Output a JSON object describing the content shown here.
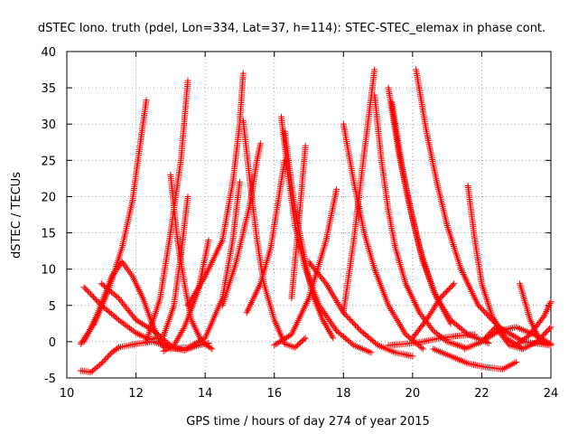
{
  "chart_data": {
    "type": "scatter",
    "title": "dSTEC Iono. truth (pdel, Lon=334, Lat=37, h=114): STEC-STEC_elemax in phase cont.",
    "xlabel": "GPS time / hours of day 274 of year 2015",
    "ylabel": "dSTEC  / TECUs",
    "xlim": [
      10,
      24
    ],
    "ylim": [
      -5,
      40
    ],
    "xticks": [
      10,
      12,
      14,
      16,
      18,
      20,
      22,
      24
    ],
    "yticks": [
      -5,
      0,
      5,
      10,
      15,
      20,
      25,
      30,
      35,
      40
    ],
    "grid": true,
    "marker": "plus",
    "color": "#ff0000",
    "series": [
      {
        "x": [
          10.4,
          10.8,
          11.2,
          11.6,
          11.9,
          12.1,
          12.3
        ],
        "y": [
          -0.3,
          2.5,
          7,
          13,
          19.5,
          26.5,
          33.3
        ]
      },
      {
        "x": [
          10.5,
          11.0,
          11.5,
          12.0,
          12.4,
          12.8,
          13.1,
          13.3,
          13.5
        ],
        "y": [
          7.5,
          5,
          3,
          1.2,
          0.3,
          0.8,
          5,
          12,
          20
        ]
      },
      {
        "x": [
          10.4,
          10.7,
          11.0,
          11.3,
          11.5
        ],
        "y": [
          -4,
          -4.2,
          -3,
          -1.5,
          -0.8
        ]
      },
      {
        "x": [
          11.5,
          12.0,
          12.5,
          13.0,
          13.4,
          13.8,
          14.1
        ],
        "y": [
          -0.8,
          -0.3,
          0,
          -0.8,
          -1.2,
          -0.5,
          -0.2
        ]
      },
      {
        "x": [
          10.5,
          10.9,
          11.3,
          11.6,
          11.9,
          12.2,
          12.5,
          12.8
        ],
        "y": [
          0,
          4,
          9,
          11,
          9,
          6,
          2,
          -0.8
        ]
      },
      {
        "x": [
          12.3,
          12.7,
          13.0,
          13.3,
          13.5
        ],
        "y": [
          0,
          6,
          15,
          25,
          36
        ]
      },
      {
        "x": [
          12.8,
          13.1,
          13.4,
          13.8,
          14.1
        ],
        "y": [
          -1.3,
          -0.5,
          2,
          7,
          14
        ]
      },
      {
        "x": [
          11.0,
          11.5,
          12.0,
          12.5,
          13.0
        ],
        "y": [
          8,
          6,
          3,
          1.5,
          -0.5
        ]
      },
      {
        "x": [
          13.0,
          13.2,
          13.4,
          13.6,
          13.9,
          14.2
        ],
        "y": [
          23,
          14,
          8,
          3,
          0,
          -1
        ]
      },
      {
        "x": [
          13.0,
          13.5,
          14.0,
          14.5,
          14.8,
          15.0
        ],
        "y": [
          -1,
          -0.8,
          0.5,
          6,
          14,
          22
        ]
      },
      {
        "x": [
          13.5,
          14.0,
          14.5,
          14.8,
          15.0,
          15.1
        ],
        "y": [
          5,
          9,
          14,
          22,
          30,
          37
        ]
      },
      {
        "x": [
          15.1,
          15.3,
          15.5,
          15.7,
          16.0,
          16.3,
          16.6,
          16.9
        ],
        "y": [
          30.5,
          22,
          14,
          8,
          3,
          -0.3,
          -0.8,
          0.5
        ]
      },
      {
        "x": [
          14.5,
          14.9,
          15.3,
          15.5,
          15.6
        ],
        "y": [
          5,
          11,
          19,
          25,
          27.3
        ]
      },
      {
        "x": [
          15.2,
          15.6,
          15.9,
          16.1,
          16.3
        ],
        "y": [
          4,
          8,
          13,
          19,
          25
        ]
      },
      {
        "x": [
          16.2,
          16.4,
          16.6,
          16.9,
          17.3,
          17.8,
          18.3,
          18.8
        ],
        "y": [
          31,
          23,
          16,
          10,
          5,
          1.5,
          -0.5,
          -1.5
        ]
      },
      {
        "x": [
          16.3,
          16.6,
          16.9,
          17.1,
          17.4,
          17.7
        ],
        "y": [
          29,
          18,
          11,
          6.5,
          3,
          0.5
        ]
      },
      {
        "x": [
          16.5,
          16.7,
          16.9
        ],
        "y": [
          6,
          16,
          27
        ]
      },
      {
        "x": [
          16.0,
          16.5,
          17.0,
          17.5,
          17.8
        ],
        "y": [
          -0.5,
          1,
          6,
          14,
          21
        ]
      },
      {
        "x": [
          17.0,
          17.5,
          18.0,
          18.5,
          19.0,
          19.5,
          20.0
        ],
        "y": [
          11,
          8,
          4,
          1.5,
          -0.5,
          -1.5,
          -2
        ]
      },
      {
        "x": [
          18.0,
          18.3,
          18.6,
          18.9,
          19.3,
          19.8,
          20.3
        ],
        "y": [
          30,
          22,
          15,
          10,
          5,
          1,
          -1
        ]
      },
      {
        "x": [
          18.0,
          18.3,
          18.6,
          18.9
        ],
        "y": [
          4,
          14,
          26,
          37.5
        ]
      },
      {
        "x": [
          18.9,
          19.1,
          19.3,
          19.5,
          19.8,
          20.2,
          20.6,
          21.0,
          21.5
        ],
        "y": [
          34,
          25,
          18,
          13,
          8,
          4,
          1.5,
          0,
          -0.8
        ]
      },
      {
        "x": [
          19.3,
          19.6,
          19.9,
          20.2,
          20.6,
          21.1
        ],
        "y": [
          35,
          26,
          19,
          13,
          7,
          2.5
        ]
      },
      {
        "x": [
          19.4,
          19.7,
          20.0,
          20.3,
          20.7,
          21.1,
          21.6,
          22.2
        ],
        "y": [
          33,
          24,
          17,
          11,
          6,
          3,
          1,
          -0.2
        ]
      },
      {
        "x": [
          20.1,
          20.4,
          20.7,
          21.0,
          21.4,
          21.9,
          22.5,
          23.2,
          24.0
        ],
        "y": [
          37.5,
          29,
          22,
          16,
          10,
          5,
          2,
          0,
          -0.5
        ]
      },
      {
        "x": [
          19.3,
          19.8,
          20.3,
          20.8,
          21.3,
          21.8
        ],
        "y": [
          -0.5,
          -0.3,
          0,
          0.5,
          0.8,
          1
        ]
      },
      {
        "x": [
          20.0,
          20.4,
          20.8,
          21.2
        ],
        "y": [
          0.5,
          3,
          6,
          8
        ]
      },
      {
        "x": [
          21.6,
          21.8,
          22.0,
          22.3,
          22.7,
          23.2
        ],
        "y": [
          21.5,
          14,
          8,
          3.5,
          0.5,
          -1
        ]
      },
      {
        "x": [
          20.6,
          21.1,
          21.6,
          22.1,
          22.6,
          23.0
        ],
        "y": [
          -1,
          -2,
          -3,
          -3.5,
          -3.8,
          -2.8
        ]
      },
      {
        "x": [
          21.5,
          22.0,
          22.5,
          23.0,
          23.5,
          24.0
        ],
        "y": [
          -1,
          0,
          1.5,
          2,
          1,
          -0.3
        ]
      },
      {
        "x": [
          22.0,
          22.4,
          22.8,
          23.2,
          23.6,
          24.0
        ],
        "y": [
          0,
          2,
          -0.5,
          -1,
          0,
          2
        ]
      },
      {
        "x": [
          23.1,
          23.4,
          23.7,
          24.0
        ],
        "y": [
          8,
          3,
          0,
          -0.5
        ]
      },
      {
        "x": [
          23.0,
          23.4,
          23.8,
          24.0
        ],
        "y": [
          -0.5,
          1,
          3.5,
          5.5
        ]
      }
    ]
  }
}
